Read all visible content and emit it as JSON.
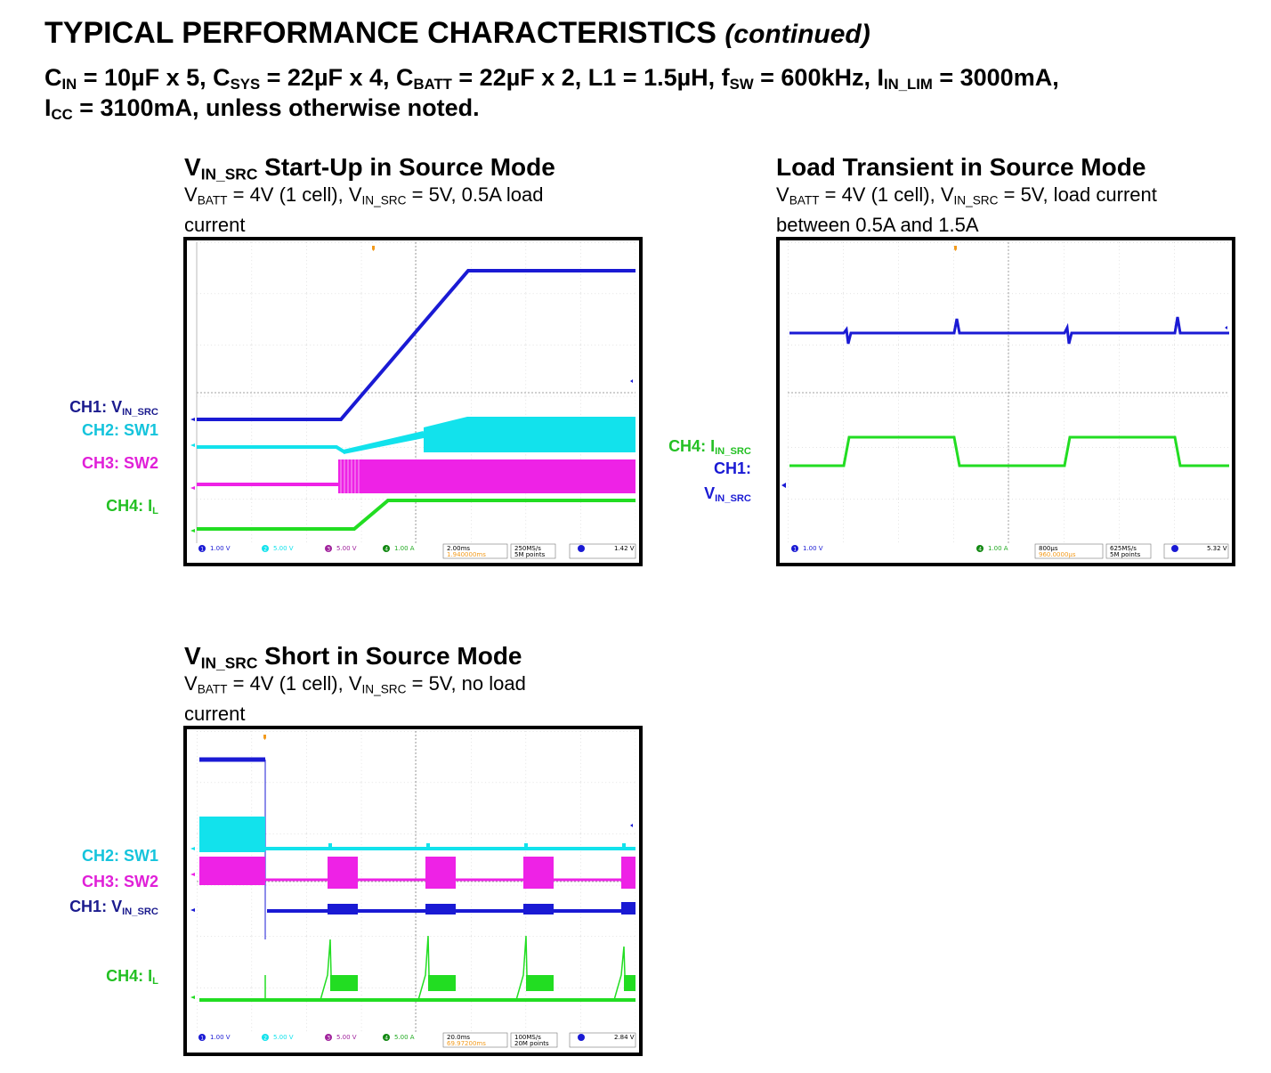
{
  "header": {
    "title": "TYPICAL PERFORMANCE CHARACTERISTICS",
    "title_suffix": "(continued)"
  },
  "conditions": {
    "cin_c": "C",
    "cin_sub": "IN",
    "cin_rest": " = 10µF x 5, ",
    "csys_c": "C",
    "csys_sub": "SYS",
    "csys_rest": " = 22µF x 4, ",
    "cbatt_c": "C",
    "cbatt_sub": "BATT",
    "cbatt_rest": " = 22µF x 2, L1 = 1.5µH, ",
    "fsw_f": "f",
    "fsw_sub": "SW",
    "fsw_rest": " = 600kHz, ",
    "ilim_i": "I",
    "ilim_sub": "IN_LIM",
    "ilim_rest": " = 3000mA,",
    "icc_i": "I",
    "icc_sub": "CC",
    "icc_rest": " = 3100mA, unless otherwise noted."
  },
  "panels": {
    "startup": {
      "title_v": "V",
      "title_sub": "IN_SRC",
      "title_rest": " Start-Up in Source Mode",
      "sub1_a": "V",
      "sub1_a_sub": "BATT",
      "sub1_b": " = 4V (1 cell), V",
      "sub1_b_sub": "IN_SRC",
      "sub1_c": " = 5V, 0.5A load",
      "sub2": "current",
      "labels": {
        "ch1": "CH1: V",
        "ch1_sub": "IN_SRC",
        "ch2": "CH2: SW1",
        "ch3": "CH3: SW2",
        "ch4": "CH4: I",
        "ch4_sub": "L"
      },
      "status": {
        "ch1_scale": "1.00 V",
        "ch2_scale": "5.00 V",
        "ch3_scale": "5.00 V",
        "ch4_scale": "1.00 A",
        "timebase": "2.00ms",
        "delay": "1.940000ms",
        "rate": "250MS/s",
        "points": "5M points",
        "trig_level": "1.42 V"
      }
    },
    "transient": {
      "title": "Load Transient in Source Mode",
      "sub1_a": "V",
      "sub1_a_sub": "BATT",
      "sub1_b": " = 4V (1 cell), V",
      "sub1_b_sub": "IN_SRC",
      "sub1_c": " = 5V, load current",
      "sub2": "between 0.5A and 1.5A",
      "labels": {
        "ch4": "CH4: I",
        "ch4_sub": "IN_SRC",
        "ch1": "CH1:",
        "ch1_v": "V",
        "ch1_sub": "IN_SRC"
      },
      "status": {
        "ch1_scale": "1.00 V",
        "ch4_scale": "1.00 A",
        "timebase": "800µs",
        "delay": "960.0000µs",
        "rate": "625MS/s",
        "points": "5M points",
        "trig_level": "5.32 V"
      }
    },
    "short": {
      "title_v": "V",
      "title_sub": "IN_SRC",
      "title_rest": " Short in Source Mode",
      "sub1_a": "V",
      "sub1_a_sub": "BATT",
      "sub1_b": " = 4V (1 cell), V",
      "sub1_b_sub": "IN_SRC",
      "sub1_c": " = 5V, no load",
      "sub2": "current",
      "labels": {
        "ch2": "CH2: SW1",
        "ch3": "CH3: SW2",
        "ch1": "CH1: V",
        "ch1_sub": "IN_SRC",
        "ch4": "CH4: I",
        "ch4_sub": "L"
      },
      "status": {
        "ch1_scale": "1.00 V",
        "ch2_scale": "5.00 V",
        "ch3_scale": "5.00 V",
        "ch4_scale": "5.00 A",
        "timebase": "20.0ms",
        "delay": "69.97200ms",
        "rate": "100MS/s",
        "points": "20M points",
        "trig_level": "2.84 V"
      }
    }
  },
  "colors": {
    "ch1": "#1a1ad4",
    "ch2": "#12e2ec",
    "ch3": "#ee22e6",
    "ch4": "#22dd22",
    "trigger": "#f29a1c"
  }
}
